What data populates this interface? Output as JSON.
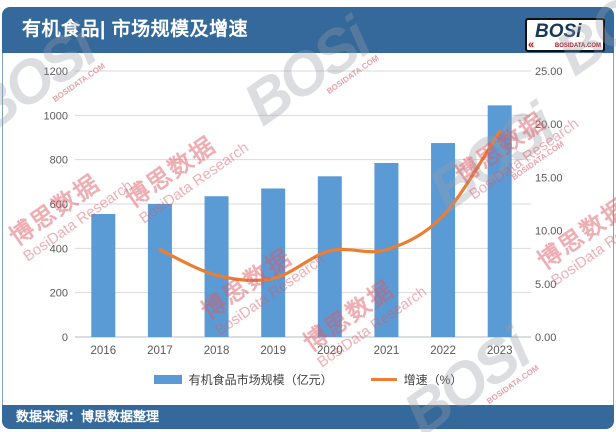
{
  "header": {
    "title": "有机食品| 市场规模及增速",
    "logo": {
      "text": "BOSi",
      "domain": "BOSIDATA.COM",
      "chevron": "«"
    }
  },
  "footer": {
    "source": "数据来源：博思数据整理"
  },
  "watermark": {
    "logo": "BOSi",
    "domain": "BOSIDATA.COM",
    "cn": "博思数据",
    "en": "BosiData Research"
  },
  "colors": {
    "header_bg": "#35699b",
    "bar": "#5b9bd5",
    "line": "#ed7d31",
    "grid": "#d9d9d9",
    "axis_text": "#595959"
  },
  "chart_data": {
    "type": "bar+line",
    "title": "有机食品| 市场规模及增速",
    "categories": [
      "2016",
      "2017",
      "2018",
      "2019",
      "2020",
      "2021",
      "2022",
      "2023"
    ],
    "series": [
      {
        "name": "有机食品市场规模（亿元）",
        "type": "bar",
        "axis": "left",
        "color": "#5b9bd5",
        "values": [
          555,
          600,
          635,
          670,
          725,
          785,
          875,
          1045
        ]
      },
      {
        "name": "增速（%）",
        "type": "line",
        "axis": "right",
        "color": "#ed7d31",
        "values": [
          null,
          8.2,
          5.8,
          5.5,
          8.1,
          8.2,
          11.4,
          19.3
        ]
      }
    ],
    "left_axis": {
      "min": 0,
      "max": 1200,
      "step": 200,
      "tick_labels": [
        "0",
        "200",
        "400",
        "600",
        "800",
        "1000",
        "1200"
      ]
    },
    "right_axis": {
      "min": 0,
      "max": 25,
      "step": 5,
      "tick_labels": [
        "0.00",
        "5.00",
        "10.00",
        "15.00",
        "20.00",
        "25.00"
      ]
    },
    "grid": true,
    "legend_position": "bottom"
  }
}
